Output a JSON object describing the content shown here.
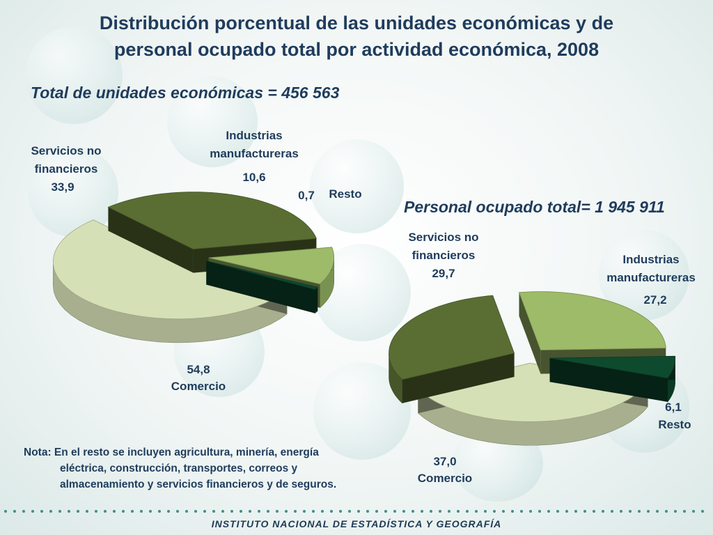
{
  "title_line1": "Distribución porcentual de las unidades económicas y  de",
  "title_line2": "personal ocupado total por  actividad económica, 2008",
  "footer": "INSTITUTO NACIONAL  DE ESTADÍSTICA Y GEOGRAFÍA",
  "note": {
    "prefix": "Nota:",
    "line1": "En el resto se incluyen agricultura, minería, energía",
    "line2": "eléctrica, construcción, transportes, correos y",
    "line3": "almacenamiento y servicios financieros y de seguros."
  },
  "colors": {
    "comercio": "#d6e0b6",
    "servicios": "#5a6e34",
    "industrias": "#9dbb68",
    "resto": "#0e4a2e"
  },
  "chart_data": [
    {
      "type": "pie",
      "title": "Total de unidades económicas = 456 563",
      "labels": {
        "servicios": [
          "Servicios no",
          "financieros"
        ],
        "industrias": [
          "Industrias",
          "manufactureras"
        ],
        "resto": "Resto",
        "comercio": "Comercio"
      },
      "value_labels": {
        "servicios": "33,9",
        "industrias": "10,6",
        "resto": "0,7",
        "comercio": "54,8"
      },
      "series": [
        {
          "name": "Comercio",
          "key": "comercio",
          "value": 54.8
        },
        {
          "name": "Servicios no financieros",
          "key": "servicios",
          "value": 33.9
        },
        {
          "name": "Industrias manufactureras",
          "key": "industrias",
          "value": 10.6
        },
        {
          "name": "Resto",
          "key": "resto",
          "value": 0.7
        }
      ]
    },
    {
      "type": "pie",
      "title": "Personal ocupado total= 1 945 911",
      "labels": {
        "servicios": [
          "Servicios no",
          "financieros"
        ],
        "industrias": [
          "Industrias",
          "manufactureras"
        ],
        "resto": "Resto",
        "comercio": "Comercio"
      },
      "value_labels": {
        "servicios": "29,7",
        "industrias": "27,2",
        "resto": "6,1",
        "comercio": "37,0"
      },
      "series": [
        {
          "name": "Comercio",
          "key": "comercio",
          "value": 37.0
        },
        {
          "name": "Servicios no financieros",
          "key": "servicios",
          "value": 29.7
        },
        {
          "name": "Industrias manufactureras",
          "key": "industrias",
          "value": 27.2
        },
        {
          "name": "Resto",
          "key": "resto",
          "value": 6.1
        }
      ]
    }
  ]
}
